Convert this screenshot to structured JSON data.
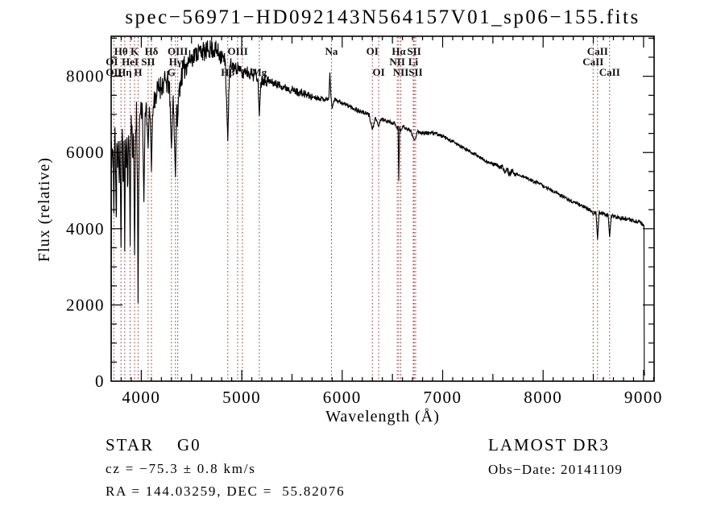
{
  "page": {
    "title": "spec−56971−HD092143N564157V01_sp06−155.fits"
  },
  "annotations": {
    "star_line": "STAR    G0",
    "cz_line": "cz = −75.3 ± 0.8 km/s",
    "radec_line": "RA = 144.03259, DEC =  55.82076",
    "survey_line": "LAMOST DR3",
    "obs_line": "Obs−Date: 20141109"
  },
  "colors": {
    "spectrum": "#000000",
    "line_marker": "#993333",
    "axis": "#000000",
    "background": "#ffffff"
  },
  "chart_data": {
    "type": "line",
    "title": "spec−56971−HD092143N564157V01_sp06−155.fits",
    "xlabel": "Wavelength (Å)",
    "ylabel": "Flux (relative)",
    "xlim": [
      3700,
      9105
    ],
    "ylim": [
      0,
      9050
    ],
    "grid": false,
    "x_ticks": [
      4000,
      5000,
      6000,
      7000,
      8000,
      9000
    ],
    "y_ticks": [
      0,
      2000,
      4000,
      6000,
      8000
    ],
    "red_lines": [
      3727,
      3798,
      3835,
      3889,
      3933,
      3968,
      4068,
      4101,
      4300,
      4340,
      4363,
      4861,
      4959,
      5007,
      5175,
      5893,
      6300,
      6363,
      6548,
      6563,
      6583,
      6707,
      6716,
      6731,
      8498,
      8542,
      8662
    ],
    "line_labels": [
      {
        "text": "Hθ",
        "wl": 3798,
        "row": 1
      },
      {
        "text": "K",
        "wl": 3933,
        "row": 1
      },
      {
        "text": "Hδ",
        "wl": 4101,
        "row": 1
      },
      {
        "text": "OIII",
        "wl": 4363,
        "row": 1
      },
      {
        "text": "OIII",
        "wl": 4960,
        "row": 1
      },
      {
        "text": "Na",
        "wl": 5893,
        "row": 1
      },
      {
        "text": "OI",
        "wl": 6300,
        "row": 1
      },
      {
        "text": "Hα",
        "wl": 6563,
        "row": 1
      },
      {
        "text": "SII",
        "wl": 6716,
        "row": 1
      },
      {
        "text": "CaII",
        "wl": 8542,
        "row": 1
      },
      {
        "text": "OI",
        "wl": 3707,
        "row": 2
      },
      {
        "text": "HeI",
        "wl": 3889,
        "row": 2
      },
      {
        "text": "SII",
        "wl": 4068,
        "row": 2
      },
      {
        "text": "Hγ",
        "wl": 4340,
        "row": 2
      },
      {
        "text": "NII",
        "wl": 6548,
        "row": 2
      },
      {
        "text": "Li",
        "wl": 6707,
        "row": 2
      },
      {
        "text": "CaII",
        "wl": 8498,
        "row": 2
      },
      {
        "text": "OII",
        "wl": 3727,
        "row": 3
      },
      {
        "text": "Hη",
        "wl": 3835,
        "row": 3
      },
      {
        "text": "H",
        "wl": 3968,
        "row": 3
      },
      {
        "text": "G",
        "wl": 4300,
        "row": 3
      },
      {
        "text": "Hβ",
        "wl": 4861,
        "row": 3
      },
      {
        "text": "Mg",
        "wl": 5175,
        "row": 3
      },
      {
        "text": "OI",
        "wl": 6363,
        "row": 3
      },
      {
        "text": "NII",
        "wl": 6583,
        "row": 3
      },
      {
        "text": "SII",
        "wl": 6731,
        "row": 3
      },
      {
        "text": "CaII",
        "wl": 8662,
        "row": 3
      }
    ],
    "series": [
      {
        "name": "flux",
        "points": [
          [
            3700,
            150
          ],
          [
            3703,
            6300
          ],
          [
            3706,
            5600
          ],
          [
            3712,
            6100
          ],
          [
            3720,
            5900
          ],
          [
            3727,
            4400
          ],
          [
            3734,
            6200
          ],
          [
            3742,
            5800
          ],
          [
            3750,
            4300
          ],
          [
            3756,
            6250
          ],
          [
            3764,
            5600
          ],
          [
            3772,
            6300
          ],
          [
            3780,
            5200
          ],
          [
            3788,
            6300
          ],
          [
            3798,
            3500
          ],
          [
            3806,
            6200
          ],
          [
            3814,
            6350
          ],
          [
            3822,
            5400
          ],
          [
            3828,
            6300
          ],
          [
            3835,
            3400
          ],
          [
            3842,
            6350
          ],
          [
            3850,
            5600
          ],
          [
            3858,
            6400
          ],
          [
            3866,
            5200
          ],
          [
            3874,
            6450
          ],
          [
            3882,
            5800
          ],
          [
            3889,
            3550
          ],
          [
            3896,
            6300
          ],
          [
            3904,
            6500
          ],
          [
            3912,
            5900
          ],
          [
            3920,
            6500
          ],
          [
            3926,
            5700
          ],
          [
            3933,
            3300
          ],
          [
            3940,
            5700
          ],
          [
            3948,
            6550
          ],
          [
            3956,
            6300
          ],
          [
            3962,
            5100
          ],
          [
            3968,
            2050
          ],
          [
            3975,
            5300
          ],
          [
            3982,
            6800
          ],
          [
            3990,
            7000
          ],
          [
            4000,
            7150
          ],
          [
            4012,
            7000
          ],
          [
            4026,
            4700
          ],
          [
            4038,
            7050
          ],
          [
            4052,
            7200
          ],
          [
            4068,
            6100
          ],
          [
            4080,
            7200
          ],
          [
            4090,
            6900
          ],
          [
            4101,
            5500
          ],
          [
            4112,
            7000
          ],
          [
            4126,
            7350
          ],
          [
            4145,
            7500
          ],
          [
            4168,
            7650
          ],
          [
            4195,
            7750
          ],
          [
            4222,
            7820
          ],
          [
            4250,
            7850
          ],
          [
            4278,
            7780
          ],
          [
            4300,
            6100
          ],
          [
            4318,
            7500
          ],
          [
            4340,
            5350
          ],
          [
            4352,
            7200
          ],
          [
            4363,
            6900
          ],
          [
            4378,
            7700
          ],
          [
            4398,
            8000
          ],
          [
            4425,
            8200
          ],
          [
            4455,
            8350
          ],
          [
            4485,
            8450
          ],
          [
            4515,
            8520
          ],
          [
            4545,
            8600
          ],
          [
            4575,
            8650
          ],
          [
            4605,
            8680
          ],
          [
            4635,
            8620
          ],
          [
            4665,
            8700
          ],
          [
            4695,
            8720
          ],
          [
            4725,
            8700
          ],
          [
            4755,
            8660
          ],
          [
            4785,
            8580
          ],
          [
            4815,
            8480
          ],
          [
            4838,
            8320
          ],
          [
            4861,
            6300
          ],
          [
            4878,
            8150
          ],
          [
            4895,
            8250
          ],
          [
            4912,
            8300
          ],
          [
            4930,
            8220
          ],
          [
            4948,
            8180
          ],
          [
            4966,
            8250
          ],
          [
            4984,
            8150
          ],
          [
            5007,
            8000
          ],
          [
            5025,
            8150
          ],
          [
            5045,
            8150
          ],
          [
            5065,
            8100
          ],
          [
            5085,
            8080
          ],
          [
            5105,
            8050
          ],
          [
            5125,
            8020
          ],
          [
            5145,
            8050
          ],
          [
            5160,
            7950
          ],
          [
            5175,
            6950
          ],
          [
            5190,
            7850
          ],
          [
            5210,
            7950
          ],
          [
            5240,
            7900
          ],
          [
            5270,
            7870
          ],
          [
            5300,
            7840
          ],
          [
            5330,
            7810
          ],
          [
            5360,
            7780
          ],
          [
            5395,
            7750
          ],
          [
            5430,
            7700
          ],
          [
            5465,
            7680
          ],
          [
            5500,
            7650
          ],
          [
            5535,
            7600
          ],
          [
            5570,
            7580
          ],
          [
            5605,
            7550
          ],
          [
            5640,
            7520
          ],
          [
            5675,
            7480
          ],
          [
            5710,
            7460
          ],
          [
            5745,
            7440
          ],
          [
            5780,
            7420
          ],
          [
            5815,
            7400
          ],
          [
            5848,
            7390
          ],
          [
            5868,
            7450
          ],
          [
            5877,
            8100
          ],
          [
            5887,
            7500
          ],
          [
            5900,
            7150
          ],
          [
            5915,
            7350
          ],
          [
            5935,
            7400
          ],
          [
            5965,
            7350
          ],
          [
            6000,
            7300
          ],
          [
            6040,
            7250
          ],
          [
            6080,
            7200
          ],
          [
            6120,
            7150
          ],
          [
            6160,
            7100
          ],
          [
            6200,
            7060
          ],
          [
            6240,
            7020
          ],
          [
            6270,
            6980
          ],
          [
            6300,
            6600
          ],
          [
            6330,
            6900
          ],
          [
            6363,
            6680
          ],
          [
            6385,
            6880
          ],
          [
            6415,
            6850
          ],
          [
            6450,
            6820
          ],
          [
            6485,
            6790
          ],
          [
            6520,
            6760
          ],
          [
            6548,
            6620
          ],
          [
            6556,
            6700
          ],
          [
            6563,
            5250
          ],
          [
            6572,
            6680
          ],
          [
            6583,
            6560
          ],
          [
            6600,
            6680
          ],
          [
            6625,
            6650
          ],
          [
            6655,
            6620
          ],
          [
            6685,
            6580
          ],
          [
            6707,
            6380
          ],
          [
            6716,
            6340
          ],
          [
            6731,
            6360
          ],
          [
            6748,
            6540
          ],
          [
            6775,
            6530
          ],
          [
            6810,
            6520
          ],
          [
            6850,
            6510
          ],
          [
            6890,
            6505
          ],
          [
            6935,
            6500
          ],
          [
            6975,
            6450
          ],
          [
            7015,
            6400
          ],
          [
            7055,
            6340
          ],
          [
            7095,
            6290
          ],
          [
            7135,
            6230
          ],
          [
            7175,
            6170
          ],
          [
            7215,
            6110
          ],
          [
            7255,
            6050
          ],
          [
            7295,
            5990
          ],
          [
            7335,
            5930
          ],
          [
            7375,
            5870
          ],
          [
            7415,
            5810
          ],
          [
            7455,
            5740
          ],
          [
            7495,
            5700
          ],
          [
            7535,
            5680
          ],
          [
            7565,
            5590
          ],
          [
            7590,
            5630
          ],
          [
            7615,
            5480
          ],
          [
            7640,
            5590
          ],
          [
            7665,
            5440
          ],
          [
            7690,
            5540
          ],
          [
            7715,
            5410
          ],
          [
            7745,
            5430
          ],
          [
            7780,
            5390
          ],
          [
            7815,
            5350
          ],
          [
            7850,
            5310
          ],
          [
            7885,
            5270
          ],
          [
            7920,
            5230
          ],
          [
            7955,
            5190
          ],
          [
            7990,
            5140
          ],
          [
            8025,
            5090
          ],
          [
            8060,
            5040
          ],
          [
            8095,
            4990
          ],
          [
            8130,
            4940
          ],
          [
            8165,
            4890
          ],
          [
            8200,
            4840
          ],
          [
            8235,
            4790
          ],
          [
            8270,
            4740
          ],
          [
            8305,
            4700
          ],
          [
            8340,
            4660
          ],
          [
            8375,
            4620
          ],
          [
            8410,
            4570
          ],
          [
            8445,
            4520
          ],
          [
            8470,
            4490
          ],
          [
            8485,
            4470
          ],
          [
            8498,
            4360
          ],
          [
            8512,
            4440
          ],
          [
            8527,
            4420
          ],
          [
            8542,
            3715
          ],
          [
            8557,
            4410
          ],
          [
            8580,
            4400
          ],
          [
            8605,
            4390
          ],
          [
            8630,
            4370
          ],
          [
            8648,
            4350
          ],
          [
            8662,
            3780
          ],
          [
            8678,
            4340
          ],
          [
            8700,
            4320
          ],
          [
            8730,
            4300
          ],
          [
            8765,
            4285
          ],
          [
            8800,
            4265
          ],
          [
            8835,
            4245
          ],
          [
            8870,
            4225
          ],
          [
            8905,
            4205
          ],
          [
            8935,
            4185
          ],
          [
            8965,
            4160
          ],
          [
            8990,
            4120
          ],
          [
            9000,
            4080
          ],
          [
            9004,
            4100
          ],
          [
            9007,
            300
          ],
          [
            9010,
            150
          ]
        ]
      }
    ],
    "noise_bands": [
      [
        3700,
        3990,
        950
      ],
      [
        3990,
        4450,
        330
      ],
      [
        4450,
        4900,
        260
      ],
      [
        4900,
        5300,
        170
      ],
      [
        5300,
        5700,
        110
      ],
      [
        5700,
        6300,
        60
      ],
      [
        6300,
        7300,
        50
      ],
      [
        7300,
        7580,
        45
      ],
      [
        7580,
        7700,
        85
      ],
      [
        7700,
        8400,
        45
      ],
      [
        8400,
        9002,
        55
      ],
      [
        9002,
        9012,
        30
      ]
    ],
    "dip_protect": [
      3700,
      3727,
      3798,
      3835,
      3889,
      3933,
      3968,
      4026,
      4068,
      4101,
      4300,
      4340,
      4861,
      5175,
      5877,
      5900,
      6300,
      6363,
      6548,
      6563,
      6583,
      6707,
      6716,
      6731,
      8498,
      8542,
      8662,
      9007
    ]
  }
}
